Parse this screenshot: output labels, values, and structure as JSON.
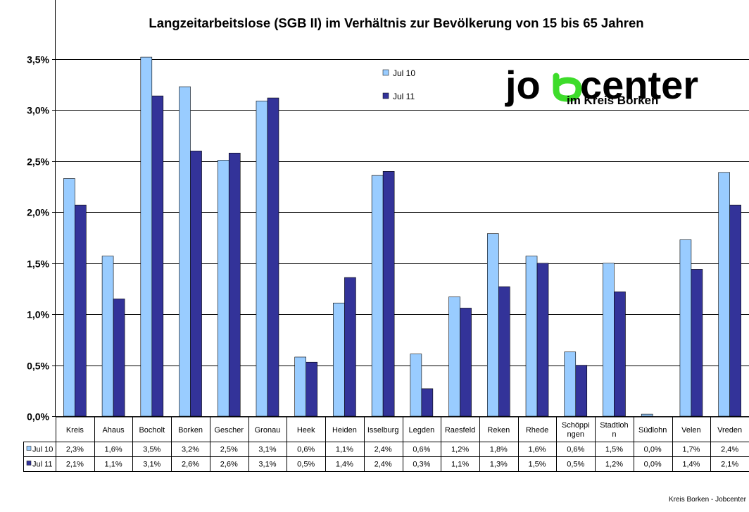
{
  "chart_data": {
    "type": "bar",
    "title": "Langzeitarbeitslose (SGB II) im Verhältnis zur Bevölkerung von 15 bis 65 Jahren",
    "categories": [
      "Kreis",
      "Ahaus",
      "Bocholt",
      "Borken",
      "Gescher",
      "Gronau",
      "Heek",
      "Heiden",
      "Isselburg",
      "Legden",
      "Raesfeld",
      "Reken",
      "Rhede",
      "Schöppingen",
      "Stadtlohn",
      "Südlohn",
      "Velen",
      "Vreden"
    ],
    "category_labels": [
      [
        "Kreis"
      ],
      [
        "Ahaus"
      ],
      [
        "Bocholt"
      ],
      [
        "Borken"
      ],
      [
        "Gescher"
      ],
      [
        "Gronau"
      ],
      [
        "Heek"
      ],
      [
        "Heiden"
      ],
      [
        "Isselburg"
      ],
      [
        "Legden"
      ],
      [
        "Raesfeld"
      ],
      [
        "Reken"
      ],
      [
        "Rhede"
      ],
      [
        "Schöppi",
        "ngen"
      ],
      [
        "Stadtloh",
        "n"
      ],
      [
        "Südlohn"
      ],
      [
        "Velen"
      ],
      [
        "Vreden"
      ]
    ],
    "series": [
      {
        "name": "Jul 10",
        "color": "#99CCFF",
        "values": [
          2.33,
          1.57,
          3.52,
          3.23,
          2.51,
          3.09,
          0.58,
          1.11,
          2.36,
          0.61,
          1.17,
          1.79,
          1.57,
          0.63,
          1.5,
          0.02,
          1.73,
          2.39
        ],
        "labels": [
          "2,3%",
          "1,6%",
          "3,5%",
          "3,2%",
          "2,5%",
          "3,1%",
          "0,6%",
          "1,1%",
          "2,4%",
          "0,6%",
          "1,2%",
          "1,8%",
          "1,6%",
          "0,6%",
          "1,5%",
          "0,0%",
          "1,7%",
          "2,4%"
        ]
      },
      {
        "name": "Jul 11",
        "color": "#333399",
        "values": [
          2.07,
          1.15,
          3.14,
          2.6,
          2.58,
          3.12,
          0.53,
          1.36,
          2.4,
          0.27,
          1.06,
          1.27,
          1.5,
          0.5,
          1.22,
          0.0,
          1.44,
          2.07
        ],
        "labels": [
          "2,1%",
          "1,1%",
          "3,1%",
          "2,6%",
          "2,6%",
          "3,1%",
          "0,5%",
          "1,4%",
          "2,4%",
          "0,3%",
          "1,1%",
          "1,3%",
          "1,5%",
          "0,5%",
          "1,2%",
          "0,0%",
          "1,4%",
          "2,1%"
        ]
      }
    ],
    "ylim": [
      0,
      3.5
    ],
    "yticks": [
      0,
      0.5,
      1.0,
      1.5,
      2.0,
      2.5,
      3.0,
      3.5
    ],
    "ytick_labels": [
      "0,0%",
      "0,5%",
      "1,0%",
      "1,5%",
      "2,0%",
      "2,5%",
      "3,0%",
      "3,5%"
    ],
    "grid": true,
    "legend_position": "top-center",
    "data_table": true
  },
  "logo": {
    "big_pre": "jo",
    "big_post": "center",
    "small": "im Kreis Borken",
    "accent": "#3DDC2A"
  },
  "footer": "Kreis Borken - Jobcenter"
}
